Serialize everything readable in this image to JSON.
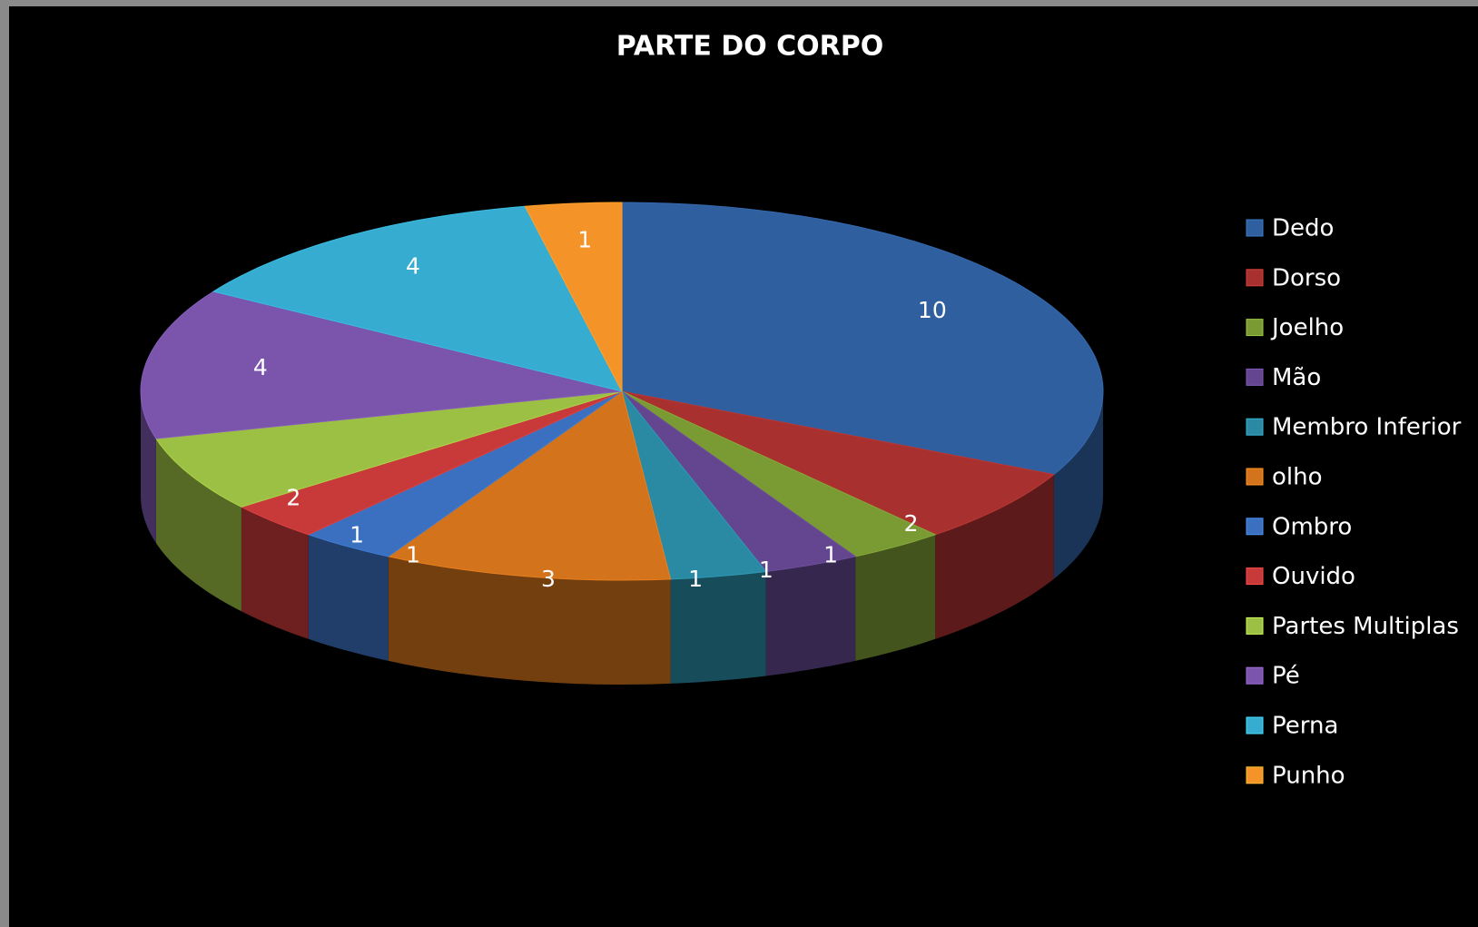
{
  "chart_data": {
    "type": "pie",
    "title": "PARTE DO CORPO",
    "categories": [
      "Dedo",
      "Dorso",
      "Joelho",
      "Mão",
      "Membro Inferior",
      "olho",
      "Ombro",
      "Ouvido",
      "Partes Multiplas",
      "Pé",
      "Perna",
      "Punho"
    ],
    "values": [
      10,
      2,
      1,
      1,
      1,
      3,
      1,
      1,
      2,
      4,
      4,
      1
    ],
    "colors": [
      "#2f5f9e",
      "#a8312f",
      "#7a9a34",
      "#63468f",
      "#2a8aa3",
      "#d3731c",
      "#3a70bf",
      "#c83a3a",
      "#9cc043",
      "#7a55ab",
      "#35acd0",
      "#f39328"
    ],
    "legend": "right"
  }
}
